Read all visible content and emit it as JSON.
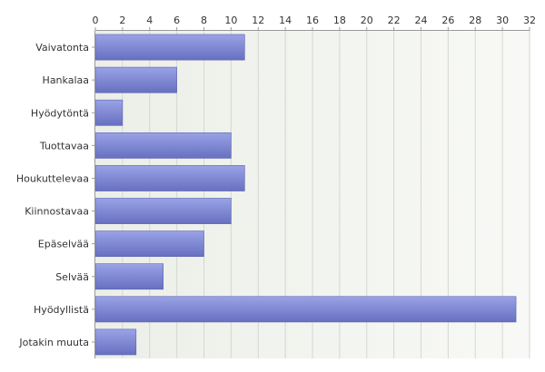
{
  "chart_data": {
    "type": "bar",
    "orientation": "horizontal",
    "categories": [
      "Vaivatonta",
      "Hankalaa",
      "Hyödytöntä",
      "Tuottavaa",
      "Houkuttelevaa",
      "Kiinnostavaa",
      "Epäselvää",
      "Selvää",
      "Hyödyllistä",
      "Jotakin muuta"
    ],
    "values": [
      11,
      6,
      2,
      10,
      11,
      10,
      8,
      5,
      31,
      3
    ],
    "xlim": [
      0,
      32
    ],
    "xticks": [
      "0",
      "2",
      "4",
      "6",
      "8",
      "10",
      "12",
      "14",
      "16",
      "18",
      "20",
      "22",
      "24",
      "26",
      "28",
      "30",
      "32"
    ],
    "x_axis_position": "top",
    "grid": true,
    "title": "",
    "xlabel": "",
    "ylabel": "",
    "colors": {
      "bar_top": "#9aa3e6",
      "bar_bottom": "#6670c0",
      "bar_edge": "#5a63b0",
      "plot_bg_left": "#ecefe8",
      "plot_bg_right": "#f8f9f6",
      "gridline": "#d4d8cf",
      "axis": "#9a9a9a"
    }
  }
}
